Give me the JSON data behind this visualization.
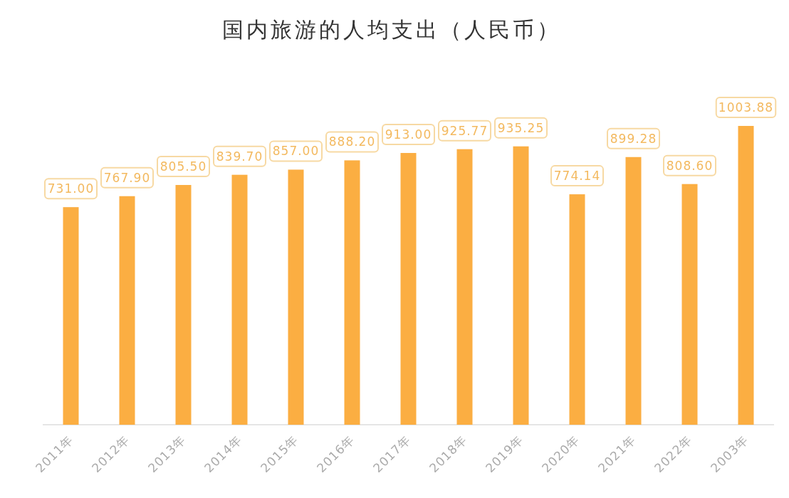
{
  "chart_data": {
    "type": "bar",
    "title": "国内旅游的人均支出（人民币）",
    "categories": [
      "2011年",
      "2012年",
      "2013年",
      "2014年",
      "2015年",
      "2016年",
      "2017年",
      "2018年",
      "2019年",
      "2020年",
      "2021年",
      "2022年",
      "2003年"
    ],
    "values": [
      731,
      767.9,
      805.5,
      839.7,
      857,
      888.2,
      913,
      925.77,
      935.25,
      774.14,
      899.28,
      808.6,
      1003.88
    ],
    "value_labels": [
      "731.00",
      "767.90",
      "805.50",
      "839.70",
      "857.00",
      "888.20",
      "913.00",
      "925.77",
      "935.25",
      "774.14",
      "899.28",
      "808.60",
      "1003.88"
    ],
    "color": "#fbae42",
    "tick_labels": "x"
  }
}
